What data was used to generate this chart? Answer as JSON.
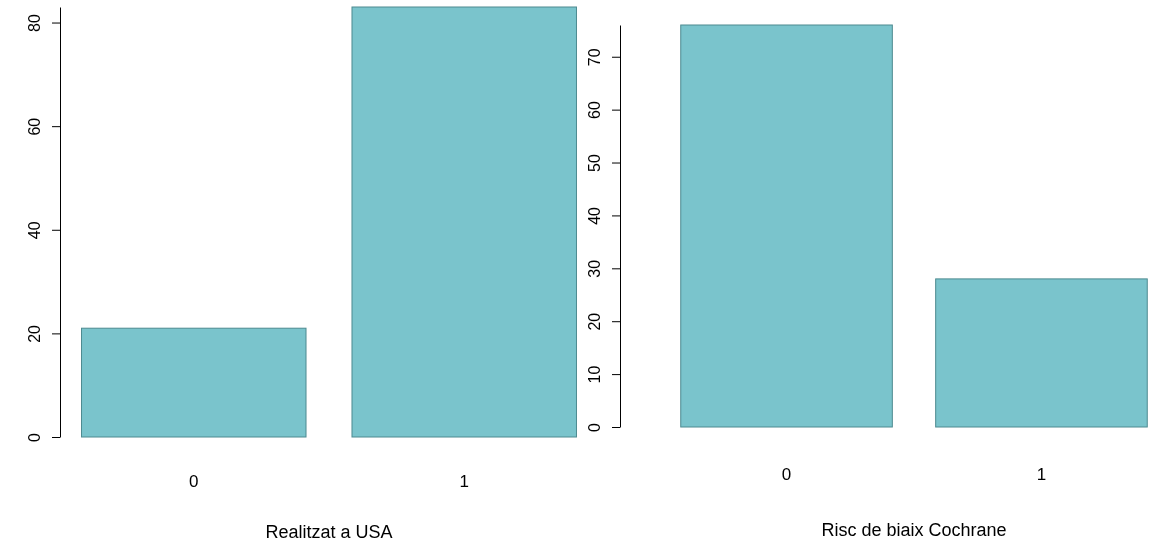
{
  "chart_data": [
    {
      "type": "bar",
      "xlabel": "Realitzat a USA",
      "categories": [
        "0",
        "1"
      ],
      "values": [
        21,
        83
      ],
      "color": "#7ac4cc",
      "ylim": [
        0,
        83
      ],
      "yticks": [
        0,
        20,
        40,
        60,
        80
      ],
      "grid": false
    },
    {
      "type": "bar",
      "xlabel": "Risc de biaix Cochrane",
      "categories": [
        "0",
        "1"
      ],
      "values": [
        76,
        28
      ],
      "color": "#7ac4cc",
      "ylim": [
        0,
        76
      ],
      "yticks": [
        0,
        10,
        20,
        30,
        40,
        50,
        60,
        70
      ],
      "grid": false
    }
  ]
}
